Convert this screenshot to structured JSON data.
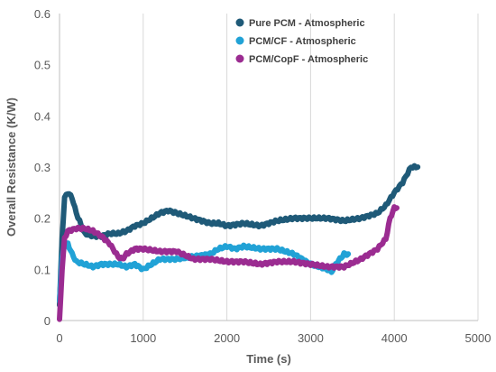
{
  "chart_data": {
    "type": "line",
    "title": "",
    "xlabel": "Time (s)",
    "ylabel": "Overall Resistance (K/W)",
    "xlim": [
      0,
      5000
    ],
    "ylim": [
      0,
      0.6
    ],
    "xticks": [
      0,
      1000,
      2000,
      3000,
      4000,
      5000
    ],
    "yticks": [
      0,
      0.1,
      0.2,
      0.3,
      0.4,
      0.5,
      0.6
    ],
    "xtick_labels": [
      "0",
      "1000",
      "2000",
      "3000",
      "4000",
      "5000"
    ],
    "ytick_labels": [
      "0",
      "0.1",
      "0.2",
      "0.3",
      "0.4",
      "0.5",
      "0.6"
    ],
    "grid": "vertical",
    "legend_position": "top-right",
    "series": [
      {
        "name": "Pure PCM - Atmospheric",
        "color": "#1f5a78",
        "x": [
          0,
          30,
          60,
          100,
          150,
          200,
          300,
          400,
          500,
          600,
          700,
          800,
          900,
          1000,
          1100,
          1200,
          1300,
          1400,
          1500,
          1600,
          1700,
          1800,
          1900,
          2000,
          2200,
          2400,
          2600,
          2800,
          3000,
          3200,
          3400,
          3600,
          3700,
          3800,
          3900,
          4000,
          4100,
          4200,
          4280
        ],
        "y": [
          0.03,
          0.16,
          0.24,
          0.25,
          0.24,
          0.21,
          0.17,
          0.165,
          0.165,
          0.17,
          0.17,
          0.175,
          0.185,
          0.19,
          0.2,
          0.21,
          0.215,
          0.21,
          0.205,
          0.2,
          0.195,
          0.19,
          0.19,
          0.185,
          0.19,
          0.185,
          0.195,
          0.2,
          0.2,
          0.2,
          0.195,
          0.2,
          0.205,
          0.21,
          0.225,
          0.25,
          0.27,
          0.3,
          0.3
        ]
      },
      {
        "name": "PCM/CF - Atmospheric",
        "color": "#21a2d6",
        "x": [
          0,
          30,
          60,
          100,
          150,
          200,
          300,
          400,
          500,
          600,
          700,
          800,
          900,
          1000,
          1200,
          1400,
          1600,
          1800,
          1900,
          2000,
          2100,
          2200,
          2400,
          2600,
          2800,
          3000,
          3100,
          3200,
          3250,
          3300,
          3350,
          3400,
          3450
        ],
        "y": [
          0.04,
          0.12,
          0.15,
          0.15,
          0.13,
          0.115,
          0.11,
          0.105,
          0.11,
          0.11,
          0.11,
          0.105,
          0.11,
          0.1,
          0.12,
          0.12,
          0.125,
          0.13,
          0.14,
          0.145,
          0.14,
          0.145,
          0.14,
          0.14,
          0.13,
          0.11,
          0.105,
          0.1,
          0.095,
          0.11,
          0.12,
          0.13,
          0.13
        ]
      },
      {
        "name": "PCM/CopF - Atmospheric",
        "color": "#9b2c91",
        "x": [
          0,
          30,
          60,
          100,
          200,
          300,
          400,
          500,
          600,
          700,
          750,
          800,
          900,
          1000,
          1200,
          1400,
          1600,
          1800,
          2000,
          2200,
          2400,
          2600,
          2800,
          3000,
          3200,
          3400,
          3600,
          3700,
          3800,
          3900,
          3950,
          4000,
          4030
        ],
        "y": [
          0.0,
          0.1,
          0.16,
          0.175,
          0.18,
          0.18,
          0.175,
          0.165,
          0.15,
          0.125,
          0.12,
          0.13,
          0.14,
          0.14,
          0.135,
          0.135,
          0.12,
          0.12,
          0.115,
          0.115,
          0.11,
          0.115,
          0.115,
          0.11,
          0.105,
          0.105,
          0.12,
          0.13,
          0.14,
          0.16,
          0.2,
          0.22,
          0.22
        ]
      }
    ]
  }
}
